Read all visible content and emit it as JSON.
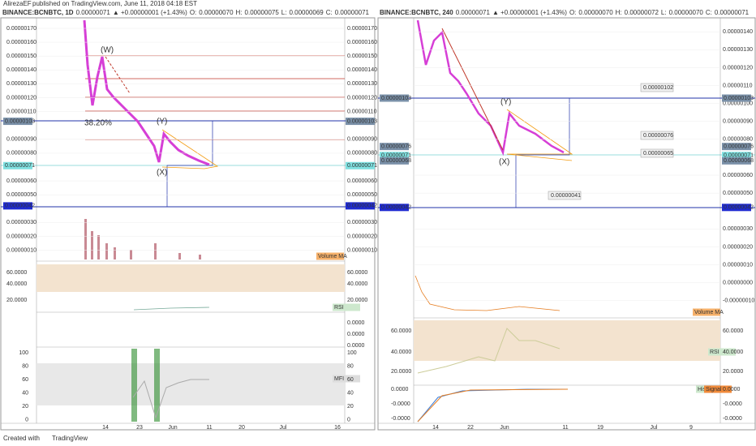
{
  "header": {
    "author": "AlirezaEF",
    "published": "published on TradingView.com, June 11, 2018 04:18 EST"
  },
  "left": {
    "symbol": "BINANCE:BCNBTC, 1D",
    "last": "0.00000071",
    "change": "▲ +0.00000001 (+1.43%)",
    "o_label": "O:",
    "o": "0.00000070",
    "h_label": "H:",
    "h": "0.00000075",
    "l_label": "L:",
    "l": "0.00000069",
    "c_label": "C:",
    "c": "0.00000071",
    "price_ticks": [
      "0.00000170",
      "0.00000160",
      "0.00000150",
      "0.00000140",
      "0.00000130",
      "0.00000120",
      "0.00000110",
      "0.00000090",
      "0.00000080",
      "0.00000060",
      "0.00000050",
      "0.00000030",
      "0.00000020",
      "0.00000010"
    ],
    "price_tags": [
      "0.00000103",
      "0.00000071",
      "0.00000042"
    ],
    "marks": [
      "(W)",
      "(Y)",
      "(X)",
      "38.20%"
    ],
    "volume_label": "Volume MA",
    "rsi_label": "RSI",
    "rsi_ticks": [
      "60.0000",
      "40.0000",
      "20.0000"
    ],
    "osc_ticks": [
      "0.0000",
      "0.0000",
      "0.0000"
    ],
    "mfi_label": "MFI",
    "mfi_ticks": [
      "100",
      "80",
      "60",
      "40",
      "20",
      "0"
    ],
    "time_ticks": [
      "14",
      "23",
      "Jun",
      "11",
      "20",
      "Jul",
      "16"
    ]
  },
  "right": {
    "symbol": "BINANCE:BCNBTC, 240",
    "last": "0.00000071",
    "change": "▲ +0.00000001 (+1.43%)",
    "o_label": "O:",
    "o": "0.00000070",
    "h_label": "H:",
    "h": "0.00000072",
    "l_label": "L:",
    "l": "0.00000070",
    "c_label": "C:",
    "c": "0.00000071",
    "price_ticks": [
      "0.00000140",
      "0.00000130",
      "0.00000120",
      "0.00000110",
      "0.00000100",
      "0.00000090",
      "0.00000080",
      "0.00000060",
      "0.00000050",
      "0.00000030",
      "0.00000020",
      "0.00000010",
      "0.00000000",
      "-0.00000010"
    ],
    "price_tags": [
      "0.00000103",
      "0.00000076",
      "0.00000071",
      "0.00000068",
      "0.00000042"
    ],
    "boxes": [
      "0.00000102",
      "0.00000076",
      "0.00000065",
      "0.00000041"
    ],
    "marks": [
      "(Y)",
      "(X)"
    ],
    "volume_label": "Volume MA",
    "rsi_label": "RSI",
    "rsi_ticks": [
      "60.0000",
      "40.0000",
      "20.0000"
    ],
    "macd_labels": [
      "Hist",
      "Signal"
    ],
    "macd_ticks": [
      "0.0000",
      "-0.0000",
      "-0.0000"
    ],
    "time_ticks": [
      "14",
      "22",
      "Jun",
      "11",
      "19",
      "Jul",
      "9"
    ]
  },
  "footer": {
    "created": "Created with",
    "brand": "TradingView"
  }
}
